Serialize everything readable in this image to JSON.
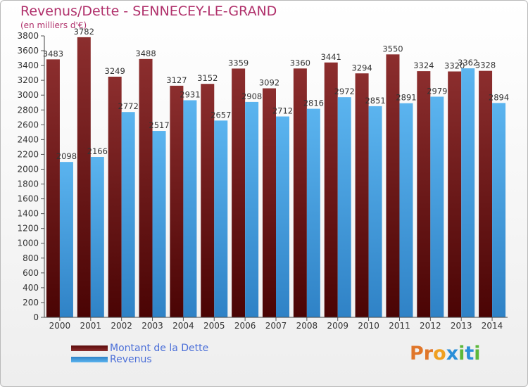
{
  "chart_data": {
    "type": "bar",
    "title": "Revenus/Dette - SENNECEY-LE-GRAND",
    "subtitle": "(en milliers d'€)",
    "categories": [
      "2000",
      "2001",
      "2002",
      "2003",
      "2004",
      "2005",
      "2006",
      "2007",
      "2008",
      "2009",
      "2010",
      "2011",
      "2012",
      "2013",
      "2014"
    ],
    "series": [
      {
        "name": "Montant de la Dette",
        "color": "#7a1c1c",
        "values": [
          3483,
          3782,
          3249,
          3488,
          3127,
          3152,
          3359,
          3092,
          3360,
          3441,
          3294,
          3550,
          3324,
          3320,
          3328
        ]
      },
      {
        "name": "Revenus",
        "color": "#4aa3e4",
        "values": [
          2098,
          2166,
          2772,
          2517,
          2931,
          2657,
          2908,
          2712,
          2816,
          2972,
          2851,
          2891,
          2979,
          3362,
          2894
        ]
      }
    ],
    "ylim": [
      0,
      3800
    ],
    "yticks": [
      0,
      200,
      400,
      600,
      800,
      1000,
      1200,
      1400,
      1600,
      1800,
      2000,
      2200,
      2400,
      2600,
      2800,
      3000,
      3200,
      3400,
      3600,
      3800
    ],
    "grid": false,
    "legend_position": "bottom-left"
  },
  "logo": {
    "text": "Proxiti",
    "letter_colors": [
      "#e0762a",
      "#e0762a",
      "#f0a020",
      "#2a8fd8",
      "#5cb83a",
      "#2a8fd8",
      "#5cb83a"
    ]
  }
}
